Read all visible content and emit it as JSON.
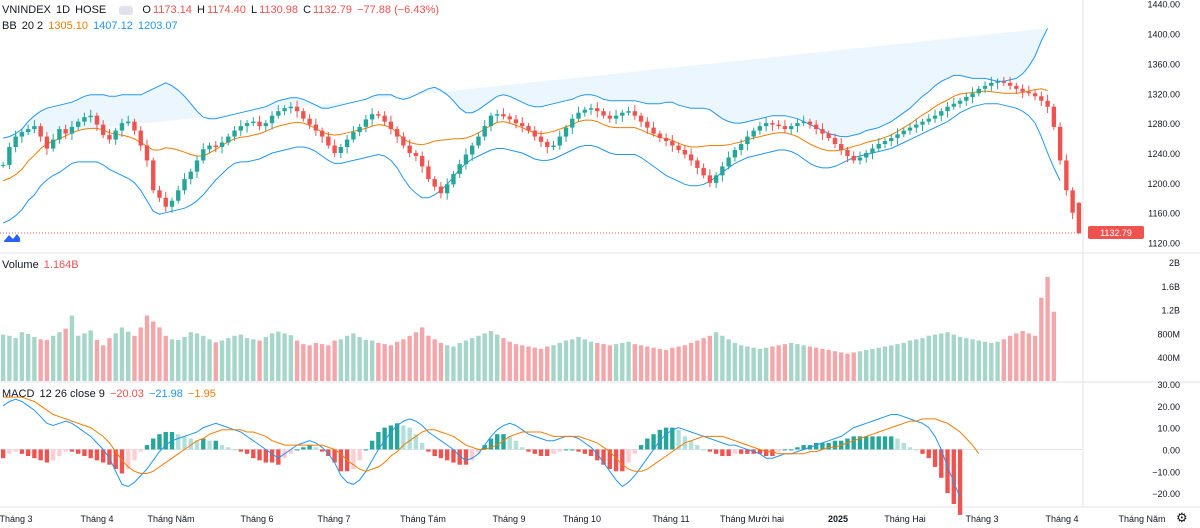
{
  "header": {
    "symbol": "VNINDEX",
    "interval": "1D",
    "exchange": "HOSE",
    "open_label": "O",
    "open": "1173.14",
    "high_label": "H",
    "high": "1174.40",
    "low_label": "L",
    "low": "1130.98",
    "close_label": "C",
    "close": "1132.79",
    "change": "−77.88 (−6.43%)"
  },
  "bb_legend": {
    "name": "BB",
    "params": "20 2",
    "basis": "1305.10",
    "upper": "1407.12",
    "lower": "1203.07"
  },
  "volume_legend": {
    "name": "Volume",
    "value": "1.164B"
  },
  "macd_legend": {
    "name": "MACD",
    "params": "12 26 close 9",
    "hist": "−20.03",
    "macd": "−21.98",
    "signal": "−1.95"
  },
  "colors": {
    "up": "#26a69a",
    "down": "#ef5350",
    "bb_band": "#2196f3",
    "bb_fill": "#e3f2fd",
    "basis": "#f57c00",
    "macd": "#2196f3",
    "signal": "#f57c00",
    "last_price_tag": "#ef5350"
  },
  "chart_data": [
    {
      "type": "candlestick",
      "title": "VNINDEX 1D HOSE",
      "ylim": [
        1110,
        1445
      ],
      "y_ticks": [
        "1440.00",
        "1400.00",
        "1360.00",
        "1320.00",
        "1280.00",
        "1240.00",
        "1200.00",
        "1160.00",
        "1120.00"
      ],
      "last_price": "1132.79",
      "x_labels": [
        "Tháng 3",
        "Tháng 4",
        "Tháng Năm",
        "Tháng 6",
        "Tháng 7",
        "Tháng Tám",
        "Tháng 9",
        "Tháng 10",
        "Tháng 11",
        "Tháng Mười hai",
        "2025",
        "Tháng Hai",
        "Tháng 3",
        "Tháng 4",
        "Tháng Năm"
      ],
      "closes": [
        1224,
        1248,
        1262,
        1268,
        1272,
        1276,
        1262,
        1246,
        1258,
        1272,
        1266,
        1275,
        1282,
        1288,
        1290,
        1278,
        1264,
        1258,
        1270,
        1280,
        1282,
        1270,
        1250,
        1230,
        1190,
        1180,
        1168,
        1176,
        1190,
        1205,
        1215,
        1230,
        1245,
        1250,
        1248,
        1254,
        1262,
        1270,
        1276,
        1280,
        1282,
        1276,
        1280,
        1290,
        1296,
        1300,
        1302,
        1296,
        1286,
        1278,
        1270,
        1262,
        1250,
        1240,
        1248,
        1258,
        1268,
        1275,
        1285,
        1292,
        1290,
        1282,
        1272,
        1262,
        1250,
        1240,
        1236,
        1222,
        1205,
        1195,
        1186,
        1198,
        1212,
        1225,
        1238,
        1250,
        1262,
        1276,
        1290,
        1292,
        1289,
        1285,
        1280,
        1276,
        1270,
        1262,
        1255,
        1248,
        1250,
        1262,
        1274,
        1286,
        1294,
        1298,
        1300,
        1296,
        1290,
        1286,
        1290,
        1294,
        1296,
        1290,
        1282,
        1274,
        1266,
        1260,
        1256,
        1250,
        1244,
        1238,
        1230,
        1220,
        1210,
        1200,
        1210,
        1222,
        1234,
        1244,
        1252,
        1262,
        1270,
        1276,
        1280,
        1278,
        1276,
        1272,
        1276,
        1280,
        1282,
        1278,
        1272,
        1266,
        1260,
        1252,
        1244,
        1236,
        1230,
        1234,
        1240,
        1246,
        1252,
        1256,
        1260,
        1265,
        1270,
        1274,
        1278,
        1282,
        1286,
        1290,
        1296,
        1302,
        1306,
        1310,
        1315,
        1320,
        1326,
        1330,
        1334,
        1336,
        1334,
        1330,
        1326,
        1322,
        1320,
        1316,
        1310,
        1302,
        1275,
        1230,
        1190,
        1160,
        1132.79
      ],
      "volumes_millions": [
        780,
        760,
        720,
        820,
        790,
        740,
        700,
        690,
        760,
        820,
        880,
        1100,
        760,
        800,
        850,
        690,
        600,
        720,
        800,
        900,
        830,
        760,
        900,
        1100,
        1000,
        900,
        760,
        700,
        690,
        740,
        820,
        800,
        760,
        700,
        650,
        680,
        720,
        760,
        780,
        720,
        700,
        680,
        740,
        800,
        830,
        800,
        770,
        680,
        620,
        600,
        640,
        620,
        600,
        680,
        700,
        760,
        800,
        740,
        690,
        680,
        640,
        620,
        600,
        660,
        700,
        760,
        820,
        900,
        760,
        700,
        640,
        600,
        580,
        640,
        680,
        720,
        760,
        800,
        840,
        780,
        720,
        660,
        620,
        600,
        580,
        560,
        540,
        580,
        600,
        640,
        680,
        700,
        740,
        700,
        660,
        640,
        620,
        600,
        620,
        640,
        660,
        620,
        600,
        580,
        560,
        540,
        520,
        560,
        580,
        600,
        640,
        680,
        720,
        760,
        820,
        760,
        700,
        640,
        600,
        580,
        560,
        540,
        560,
        580,
        600,
        620,
        640,
        620,
        600,
        580,
        560,
        540,
        520,
        500,
        480,
        460,
        480,
        500,
        520,
        540,
        560,
        580,
        600,
        620,
        640,
        680,
        700,
        720,
        760,
        780,
        800,
        820,
        780,
        740,
        720,
        700,
        680,
        660,
        640,
        660,
        700,
        760,
        800,
        840,
        800,
        760,
        1400,
        1750,
        1164
      ],
      "bb_upper": [
        1260,
        1262,
        1266,
        1272,
        1282,
        1290,
        1296,
        1300,
        1302,
        1304,
        1306,
        1308,
        1312,
        1316,
        1318,
        1318,
        1318,
        1316,
        1316,
        1318,
        1318,
        1318,
        1318,
        1322,
        1326,
        1330,
        1334,
        1330,
        1324,
        1316,
        1306,
        1296,
        1288,
        1286,
        1286,
        1288,
        1290,
        1292,
        1294,
        1296,
        1298,
        1300,
        1302,
        1306,
        1310,
        1312,
        1314,
        1314,
        1312,
        1308,
        1304,
        1300,
        1300,
        1302,
        1304,
        1306,
        1308,
        1310,
        1312,
        1316,
        1318,
        1318,
        1318,
        1314,
        1312,
        1314,
        1318,
        1322,
        1326,
        1328,
        1324,
        1318,
        1310,
        1300,
        1294,
        1294,
        1298,
        1304,
        1310,
        1316,
        1318,
        1316,
        1312,
        1308,
        1304,
        1302,
        1302,
        1304,
        1306,
        1308,
        1310,
        1312,
        1316,
        1318,
        1318,
        1316,
        1312,
        1310,
        1310,
        1310,
        1310,
        1310,
        1308,
        1306,
        1306,
        1306,
        1308,
        1308,
        1304,
        1302,
        1300,
        1300,
        1300,
        1298,
        1292,
        1286,
        1282,
        1280,
        1280,
        1282,
        1284,
        1286,
        1288,
        1290,
        1290,
        1290,
        1288,
        1286,
        1282,
        1278,
        1274,
        1270,
        1266,
        1264,
        1262,
        1262,
        1264,
        1266,
        1270,
        1272,
        1274,
        1278,
        1282,
        1288,
        1294,
        1300,
        1308,
        1316,
        1322,
        1330,
        1336,
        1340,
        1344,
        1344,
        1342,
        1340,
        1340,
        1340,
        1338,
        1336,
        1336,
        1338,
        1340,
        1346,
        1356,
        1370,
        1390,
        1407.12
      ],
      "bb_lower": [
        1146,
        1150,
        1156,
        1164,
        1176,
        1184,
        1196,
        1204,
        1210,
        1214,
        1220,
        1226,
        1228,
        1228,
        1228,
        1228,
        1224,
        1218,
        1214,
        1210,
        1206,
        1200,
        1190,
        1176,
        1162,
        1158,
        1160,
        1162,
        1164,
        1166,
        1170,
        1176,
        1184,
        1194,
        1204,
        1212,
        1220,
        1226,
        1228,
        1228,
        1230,
        1232,
        1236,
        1240,
        1242,
        1244,
        1246,
        1248,
        1248,
        1246,
        1242,
        1236,
        1230,
        1226,
        1226,
        1228,
        1230,
        1232,
        1234,
        1236,
        1238,
        1236,
        1230,
        1220,
        1206,
        1194,
        1186,
        1180,
        1180,
        1184,
        1190,
        1198,
        1208,
        1218,
        1226,
        1232,
        1236,
        1240,
        1244,
        1246,
        1246,
        1244,
        1242,
        1240,
        1236,
        1232,
        1230,
        1230,
        1232,
        1236,
        1240,
        1244,
        1248,
        1250,
        1250,
        1248,
        1244,
        1240,
        1238,
        1238,
        1238,
        1238,
        1234,
        1228,
        1222,
        1216,
        1210,
        1206,
        1202,
        1198,
        1196,
        1196,
        1198,
        1202,
        1208,
        1214,
        1220,
        1226,
        1230,
        1234,
        1236,
        1238,
        1240,
        1242,
        1244,
        1244,
        1242,
        1238,
        1232,
        1226,
        1222,
        1220,
        1220,
        1222,
        1226,
        1230,
        1234,
        1236,
        1238,
        1240,
        1242,
        1244,
        1246,
        1250,
        1254,
        1258,
        1262,
        1266,
        1270,
        1274,
        1278,
        1282,
        1288,
        1294,
        1298,
        1302,
        1304,
        1306,
        1306,
        1306,
        1304,
        1302,
        1300,
        1296,
        1290,
        1280,
        1262,
        1240,
        1220,
        1203.07
      ],
      "macd": [
        20,
        22,
        23,
        22,
        20,
        18,
        15,
        12,
        11,
        12,
        13,
        12,
        10,
        8,
        6,
        3,
        0,
        -4,
        -10,
        -16,
        -17,
        -15,
        -12,
        -9,
        -5,
        -1,
        2,
        4,
        5,
        6,
        7,
        8,
        10,
        11,
        12,
        11,
        10,
        9,
        8,
        6,
        4,
        2,
        0,
        -2,
        -4,
        -2,
        0,
        2,
        3,
        4,
        3,
        1,
        -2,
        -6,
        -12,
        -15,
        -16,
        -14,
        -10,
        -5,
        0,
        4,
        8,
        11,
        13,
        14,
        13,
        11,
        8,
        6,
        4,
        2,
        0,
        -3,
        -5,
        -4,
        -2,
        2,
        6,
        9,
        11,
        12,
        11,
        9,
        7,
        6,
        5,
        4,
        4,
        5,
        6,
        6,
        5,
        3,
        1,
        -2,
        -6,
        -10,
        -14,
        -17,
        -15,
        -12,
        -8,
        -4,
        0,
        4,
        7,
        9,
        10,
        9,
        8,
        7,
        6,
        5,
        4,
        3,
        2,
        2,
        1,
        0,
        -1,
        -2,
        -4,
        -4,
        -3,
        -2,
        -2,
        -1,
        0,
        1,
        2,
        3,
        4,
        5,
        6,
        8,
        10,
        11,
        12,
        13,
        14,
        15,
        16,
        16,
        15,
        14,
        13,
        12,
        10,
        6,
        0,
        -8,
        -15,
        -21.98
      ],
      "signal": [
        24,
        24,
        24,
        24,
        23,
        22,
        20,
        18,
        16,
        15,
        14,
        13,
        12,
        11,
        10,
        8,
        6,
        3,
        -1,
        -5,
        -8,
        -10,
        -11,
        -11,
        -10,
        -8,
        -6,
        -4,
        -2,
        0,
        2,
        4,
        5,
        7,
        8,
        9,
        9,
        9,
        9,
        8,
        8,
        7,
        6,
        4,
        3,
        2,
        2,
        2,
        2,
        2,
        2,
        2,
        1,
        0,
        -2,
        -5,
        -7,
        -9,
        -10,
        -9,
        -8,
        -6,
        -3,
        -1,
        2,
        4,
        6,
        8,
        9,
        9,
        8,
        7,
        6,
        4,
        2,
        1,
        0,
        0,
        1,
        2,
        4,
        6,
        7,
        8,
        8,
        8,
        8,
        7,
        6,
        6,
        6,
        6,
        6,
        5,
        4,
        3,
        1,
        -1,
        -4,
        -7,
        -9,
        -10,
        -10,
        -9,
        -7,
        -5,
        -3,
        -1,
        1,
        3,
        4,
        5,
        6,
        6,
        6,
        6,
        5,
        4,
        3,
        2,
        1,
        0,
        -1,
        -1,
        -2,
        -2,
        -2,
        -2,
        -2,
        -1,
        -1,
        0,
        1,
        1,
        2,
        3,
        4,
        5,
        6,
        7,
        8,
        9,
        10,
        11,
        12,
        13,
        13,
        14,
        14,
        14,
        13,
        12,
        10,
        8,
        5,
        2,
        -1.95
      ],
      "volume_ticks": [
        "2B",
        "1.6B",
        "1.2B",
        "800M",
        "400M"
      ],
      "macd_ticks": [
        "30.00",
        "20.00",
        "10.00",
        "0.00",
        "−10.00",
        "−20.00"
      ]
    }
  ]
}
